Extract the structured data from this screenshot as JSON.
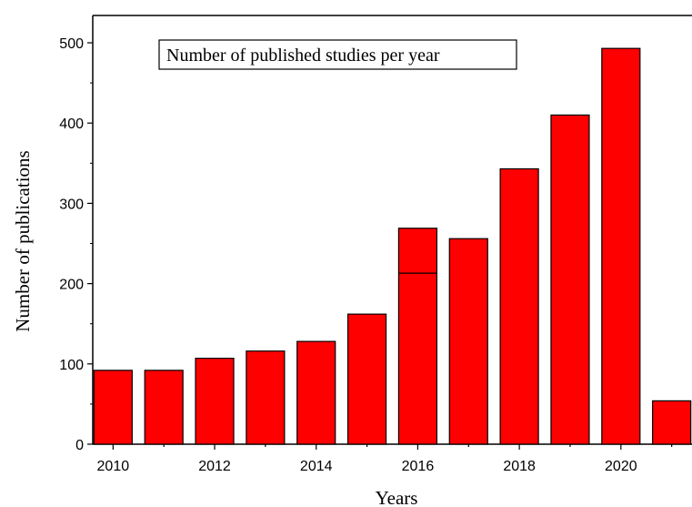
{
  "chart_data": {
    "type": "bar",
    "title": "Number of published studies per year",
    "xlabel": "Years",
    "ylabel": "Number of publications",
    "x": [
      2010,
      2011,
      2012,
      2013,
      2014,
      2015,
      2016,
      2017,
      2018,
      2019,
      2020,
      2021
    ],
    "values": [
      92,
      92,
      107,
      116,
      128,
      162,
      269,
      256,
      343,
      410,
      493,
      54
    ],
    "annotations": [
      {
        "x": 2016,
        "y": 213,
        "note": "horizontal line inside the 2016 bar"
      }
    ],
    "xlim": [
      2009.6,
      2021.4
    ],
    "ylim": [
      0,
      500
    ],
    "x_ticks": [
      2010,
      2012,
      2014,
      2016,
      2018,
      2020
    ],
    "y_ticks": [
      0,
      100,
      200,
      300,
      400,
      500
    ],
    "grid": false,
    "bar_color": "#ff0000",
    "bar_edge_color": "#000000",
    "legend_placement": "top-left"
  }
}
